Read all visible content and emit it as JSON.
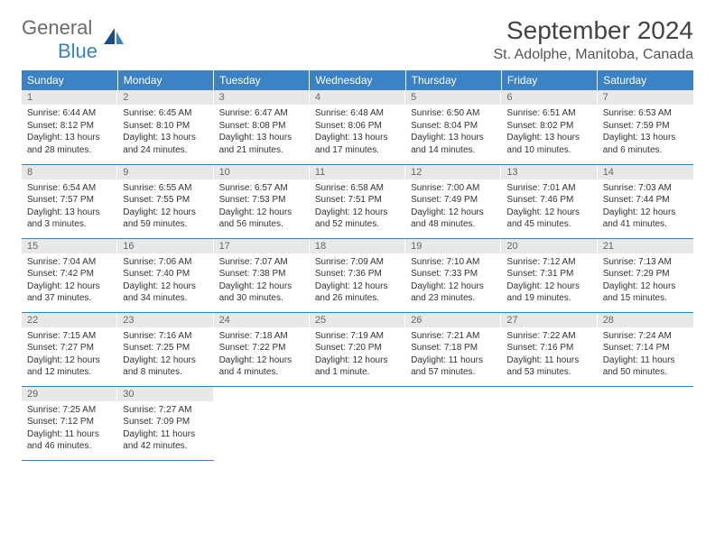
{
  "logo": {
    "part1": "General",
    "part2": "Blue"
  },
  "title": "September 2024",
  "location": "St. Adolphe, Manitoba, Canada",
  "colors": {
    "header_bg": "#3b82c4",
    "header_text": "#ffffff",
    "daynum_bg": "#e8e8e8",
    "border": "#3b82c4",
    "logo_gray": "#6b6b6b",
    "logo_blue": "#3b82c4"
  },
  "day_headers": [
    "Sunday",
    "Monday",
    "Tuesday",
    "Wednesday",
    "Thursday",
    "Friday",
    "Saturday"
  ],
  "weeks": [
    [
      {
        "n": "1",
        "sr": "Sunrise: 6:44 AM",
        "ss": "Sunset: 8:12 PM",
        "dl": "Daylight: 13 hours and 28 minutes."
      },
      {
        "n": "2",
        "sr": "Sunrise: 6:45 AM",
        "ss": "Sunset: 8:10 PM",
        "dl": "Daylight: 13 hours and 24 minutes."
      },
      {
        "n": "3",
        "sr": "Sunrise: 6:47 AM",
        "ss": "Sunset: 8:08 PM",
        "dl": "Daylight: 13 hours and 21 minutes."
      },
      {
        "n": "4",
        "sr": "Sunrise: 6:48 AM",
        "ss": "Sunset: 8:06 PM",
        "dl": "Daylight: 13 hours and 17 minutes."
      },
      {
        "n": "5",
        "sr": "Sunrise: 6:50 AM",
        "ss": "Sunset: 8:04 PM",
        "dl": "Daylight: 13 hours and 14 minutes."
      },
      {
        "n": "6",
        "sr": "Sunrise: 6:51 AM",
        "ss": "Sunset: 8:02 PM",
        "dl": "Daylight: 13 hours and 10 minutes."
      },
      {
        "n": "7",
        "sr": "Sunrise: 6:53 AM",
        "ss": "Sunset: 7:59 PM",
        "dl": "Daylight: 13 hours and 6 minutes."
      }
    ],
    [
      {
        "n": "8",
        "sr": "Sunrise: 6:54 AM",
        "ss": "Sunset: 7:57 PM",
        "dl": "Daylight: 13 hours and 3 minutes."
      },
      {
        "n": "9",
        "sr": "Sunrise: 6:55 AM",
        "ss": "Sunset: 7:55 PM",
        "dl": "Daylight: 12 hours and 59 minutes."
      },
      {
        "n": "10",
        "sr": "Sunrise: 6:57 AM",
        "ss": "Sunset: 7:53 PM",
        "dl": "Daylight: 12 hours and 56 minutes."
      },
      {
        "n": "11",
        "sr": "Sunrise: 6:58 AM",
        "ss": "Sunset: 7:51 PM",
        "dl": "Daylight: 12 hours and 52 minutes."
      },
      {
        "n": "12",
        "sr": "Sunrise: 7:00 AM",
        "ss": "Sunset: 7:49 PM",
        "dl": "Daylight: 12 hours and 48 minutes."
      },
      {
        "n": "13",
        "sr": "Sunrise: 7:01 AM",
        "ss": "Sunset: 7:46 PM",
        "dl": "Daylight: 12 hours and 45 minutes."
      },
      {
        "n": "14",
        "sr": "Sunrise: 7:03 AM",
        "ss": "Sunset: 7:44 PM",
        "dl": "Daylight: 12 hours and 41 minutes."
      }
    ],
    [
      {
        "n": "15",
        "sr": "Sunrise: 7:04 AM",
        "ss": "Sunset: 7:42 PM",
        "dl": "Daylight: 12 hours and 37 minutes."
      },
      {
        "n": "16",
        "sr": "Sunrise: 7:06 AM",
        "ss": "Sunset: 7:40 PM",
        "dl": "Daylight: 12 hours and 34 minutes."
      },
      {
        "n": "17",
        "sr": "Sunrise: 7:07 AM",
        "ss": "Sunset: 7:38 PM",
        "dl": "Daylight: 12 hours and 30 minutes."
      },
      {
        "n": "18",
        "sr": "Sunrise: 7:09 AM",
        "ss": "Sunset: 7:36 PM",
        "dl": "Daylight: 12 hours and 26 minutes."
      },
      {
        "n": "19",
        "sr": "Sunrise: 7:10 AM",
        "ss": "Sunset: 7:33 PM",
        "dl": "Daylight: 12 hours and 23 minutes."
      },
      {
        "n": "20",
        "sr": "Sunrise: 7:12 AM",
        "ss": "Sunset: 7:31 PM",
        "dl": "Daylight: 12 hours and 19 minutes."
      },
      {
        "n": "21",
        "sr": "Sunrise: 7:13 AM",
        "ss": "Sunset: 7:29 PM",
        "dl": "Daylight: 12 hours and 15 minutes."
      }
    ],
    [
      {
        "n": "22",
        "sr": "Sunrise: 7:15 AM",
        "ss": "Sunset: 7:27 PM",
        "dl": "Daylight: 12 hours and 12 minutes."
      },
      {
        "n": "23",
        "sr": "Sunrise: 7:16 AM",
        "ss": "Sunset: 7:25 PM",
        "dl": "Daylight: 12 hours and 8 minutes."
      },
      {
        "n": "24",
        "sr": "Sunrise: 7:18 AM",
        "ss": "Sunset: 7:22 PM",
        "dl": "Daylight: 12 hours and 4 minutes."
      },
      {
        "n": "25",
        "sr": "Sunrise: 7:19 AM",
        "ss": "Sunset: 7:20 PM",
        "dl": "Daylight: 12 hours and 1 minute."
      },
      {
        "n": "26",
        "sr": "Sunrise: 7:21 AM",
        "ss": "Sunset: 7:18 PM",
        "dl": "Daylight: 11 hours and 57 minutes."
      },
      {
        "n": "27",
        "sr": "Sunrise: 7:22 AM",
        "ss": "Sunset: 7:16 PM",
        "dl": "Daylight: 11 hours and 53 minutes."
      },
      {
        "n": "28",
        "sr": "Sunrise: 7:24 AM",
        "ss": "Sunset: 7:14 PM",
        "dl": "Daylight: 11 hours and 50 minutes."
      }
    ],
    [
      {
        "n": "29",
        "sr": "Sunrise: 7:25 AM",
        "ss": "Sunset: 7:12 PM",
        "dl": "Daylight: 11 hours and 46 minutes."
      },
      {
        "n": "30",
        "sr": "Sunrise: 7:27 AM",
        "ss": "Sunset: 7:09 PM",
        "dl": "Daylight: 11 hours and 42 minutes."
      },
      null,
      null,
      null,
      null,
      null
    ]
  ]
}
